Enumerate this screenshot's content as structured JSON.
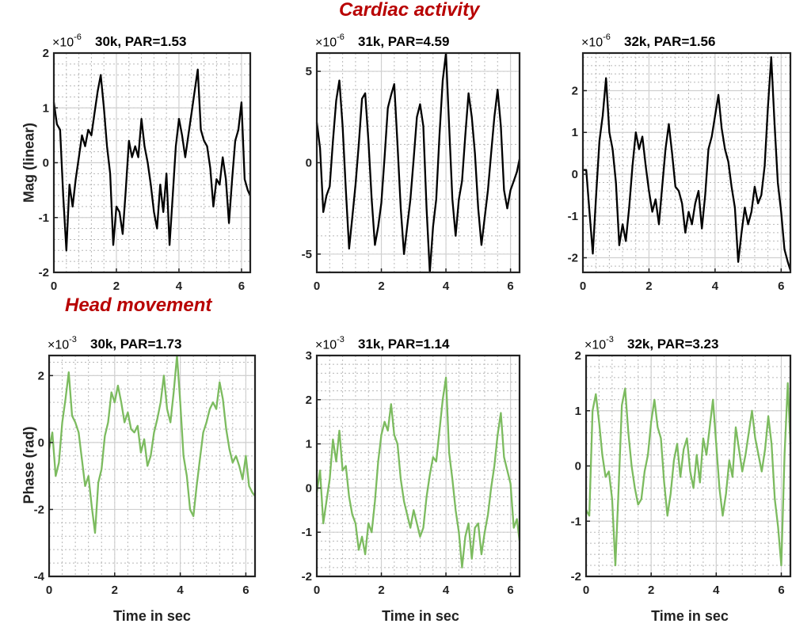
{
  "section_titles": {
    "cardiac": "Cardiac activity",
    "head": "Head movement"
  },
  "xlabel": "Time in sec",
  "colors": {
    "cardiac_line": "#000000",
    "head_line": "#7cbb5f",
    "section_title": "#b80000"
  },
  "chart_data": [
    {
      "type": "line",
      "title": "30k, PAR=1.53",
      "exponent_base": "×10",
      "exponent_power": "-6",
      "ylabel": "Mag (linear)",
      "xlabel": "",
      "xlim": [
        0,
        6.28
      ],
      "ylim": [
        -2,
        2
      ],
      "xticks": [
        0,
        2,
        4,
        6
      ],
      "yticks": [
        -2,
        -1,
        0,
        1,
        2
      ],
      "ytick_labels": [
        "-2",
        "-1",
        "0",
        "1",
        "2"
      ],
      "color": "#000000",
      "x": [
        0,
        0.1,
        0.2,
        0.3,
        0.4,
        0.5,
        0.6,
        0.7,
        0.8,
        0.9,
        1.0,
        1.1,
        1.2,
        1.3,
        1.4,
        1.5,
        1.6,
        1.7,
        1.8,
        1.9,
        2.0,
        2.1,
        2.2,
        2.3,
        2.4,
        2.5,
        2.6,
        2.7,
        2.8,
        2.9,
        3.0,
        3.1,
        3.2,
        3.3,
        3.4,
        3.5,
        3.6,
        3.7,
        3.8,
        3.9,
        4.0,
        4.1,
        4.2,
        4.3,
        4.4,
        4.5,
        4.6,
        4.7,
        4.8,
        4.9,
        5.0,
        5.1,
        5.2,
        5.3,
        5.4,
        5.5,
        5.6,
        5.7,
        5.8,
        5.9,
        6.0,
        6.1,
        6.2,
        6.28
      ],
      "values": [
        1.1,
        0.7,
        0.6,
        -0.6,
        -1.6,
        -0.4,
        -0.8,
        -0.3,
        0.1,
        0.5,
        0.3,
        0.6,
        0.5,
        0.9,
        1.3,
        1.6,
        1.0,
        0.3,
        -0.2,
        -1.5,
        -0.8,
        -0.9,
        -1.3,
        -0.5,
        0.4,
        0.1,
        0.3,
        0.1,
        0.8,
        0.3,
        0.0,
        -0.4,
        -0.9,
        -1.2,
        -0.4,
        -0.9,
        -0.2,
        -1.5,
        -0.6,
        0.3,
        0.8,
        0.5,
        0.1,
        0.5,
        0.9,
        1.3,
        1.7,
        0.6,
        0.4,
        0.3,
        -0.1,
        -0.8,
        -0.3,
        -0.4,
        0.1,
        -0.3,
        -1.1,
        -0.3,
        0.4,
        0.6,
        1.1,
        -0.3,
        -0.5,
        -0.6
      ]
    },
    {
      "type": "line",
      "title": "31k, PAR=4.59",
      "exponent_base": "×10",
      "exponent_power": "-6",
      "ylabel": "",
      "xlabel": "",
      "xlim": [
        0,
        6.28
      ],
      "ylim": [
        -6,
        6
      ],
      "xticks": [
        0,
        2,
        4,
        6
      ],
      "yticks": [
        -5,
        0,
        5
      ],
      "ytick_labels": [
        "-5",
        "0",
        "5"
      ],
      "color": "#000000",
      "x": [
        0,
        0.1,
        0.2,
        0.3,
        0.4,
        0.5,
        0.6,
        0.7,
        0.8,
        0.9,
        1.0,
        1.1,
        1.2,
        1.3,
        1.4,
        1.5,
        1.6,
        1.7,
        1.8,
        1.9,
        2.0,
        2.1,
        2.2,
        2.3,
        2.4,
        2.5,
        2.6,
        2.7,
        2.8,
        2.9,
        3.0,
        3.1,
        3.2,
        3.3,
        3.4,
        3.5,
        3.6,
        3.7,
        3.8,
        3.9,
        4.0,
        4.1,
        4.2,
        4.3,
        4.4,
        4.5,
        4.6,
        4.7,
        4.8,
        4.9,
        5.0,
        5.1,
        5.2,
        5.3,
        5.4,
        5.5,
        5.6,
        5.7,
        5.8,
        5.9,
        6.0,
        6.1,
        6.2,
        6.28
      ],
      "values": [
        2.2,
        0.8,
        -2.7,
        -1.8,
        -1.3,
        1.2,
        3.4,
        4.5,
        2.0,
        -1.5,
        -4.7,
        -3.0,
        -1.2,
        1.0,
        3.5,
        3.8,
        1.2,
        -2.0,
        -4.5,
        -3.5,
        -2.2,
        0.3,
        3.0,
        3.7,
        4.3,
        1.0,
        -2.5,
        -5.0,
        -3.5,
        -2.0,
        0.2,
        2.5,
        3.2,
        2.0,
        -2.5,
        -6.0,
        -3.5,
        -2.0,
        1.5,
        4.5,
        6.0,
        2.0,
        -2.0,
        -4.0,
        -2.0,
        -1.0,
        1.5,
        3.8,
        2.5,
        0.5,
        -2.5,
        -4.5,
        -3.0,
        -1.5,
        0.5,
        2.5,
        4.0,
        2.0,
        -1.5,
        -2.5,
        -1.5,
        -1.0,
        -0.5,
        0.2
      ]
    },
    {
      "type": "line",
      "title": "32k, PAR=1.56",
      "exponent_base": "×10",
      "exponent_power": "-6",
      "ylabel": "",
      "xlabel": "",
      "xlim": [
        0,
        6.28
      ],
      "ylim": [
        -2.35,
        2.9
      ],
      "xticks": [
        0,
        2,
        4,
        6
      ],
      "yticks": [
        -2,
        -1,
        0,
        1,
        2
      ],
      "ytick_labels": [
        "-2",
        "-1",
        "0",
        "1",
        "2"
      ],
      "color": "#000000",
      "x": [
        0,
        0.1,
        0.2,
        0.3,
        0.4,
        0.5,
        0.6,
        0.7,
        0.8,
        0.9,
        1.0,
        1.1,
        1.2,
        1.3,
        1.4,
        1.5,
        1.6,
        1.7,
        1.8,
        1.9,
        2.0,
        2.1,
        2.2,
        2.3,
        2.4,
        2.5,
        2.6,
        2.7,
        2.8,
        2.9,
        3.0,
        3.1,
        3.2,
        3.3,
        3.4,
        3.5,
        3.6,
        3.7,
        3.8,
        3.9,
        4.0,
        4.1,
        4.2,
        4.3,
        4.4,
        4.5,
        4.6,
        4.7,
        4.8,
        4.9,
        5.0,
        5.1,
        5.2,
        5.3,
        5.4,
        5.5,
        5.6,
        5.7,
        5.8,
        5.9,
        6.0,
        6.1,
        6.2,
        6.28
      ],
      "values": [
        0.1,
        0.1,
        -0.9,
        -1.9,
        -0.5,
        0.8,
        1.4,
        2.3,
        1.0,
        0.6,
        -0.2,
        -1.7,
        -1.2,
        -1.6,
        -0.8,
        0.2,
        1.0,
        0.6,
        0.9,
        0.2,
        -0.4,
        -0.9,
        -0.6,
        -1.2,
        -0.3,
        0.6,
        1.2,
        0.5,
        -0.3,
        -0.4,
        -0.7,
        -1.4,
        -0.9,
        -1.2,
        -0.7,
        -0.4,
        -1.3,
        -0.5,
        0.6,
        0.9,
        1.4,
        1.9,
        1.1,
        0.6,
        0.3,
        -0.3,
        -0.8,
        -2.1,
        -1.4,
        -0.8,
        -1.2,
        -0.9,
        -0.3,
        -0.7,
        -0.5,
        0.2,
        1.6,
        2.8,
        1.2,
        -0.2,
        -0.9,
        -1.8,
        -2.1,
        -2.3
      ]
    },
    {
      "type": "line",
      "title": "30k, PAR=1.73",
      "exponent_base": "×10",
      "exponent_power": "-3",
      "ylabel": "Phase (rad)",
      "xlabel": "Time in sec",
      "xlim": [
        0,
        6.28
      ],
      "ylim": [
        -4,
        2.6
      ],
      "xticks": [
        0,
        2,
        4,
        6
      ],
      "yticks": [
        -4,
        -2,
        0,
        2
      ],
      "ytick_labels": [
        "-4",
        "-2",
        "0",
        "2"
      ],
      "color": "#7cbb5f",
      "x": [
        0,
        0.1,
        0.2,
        0.3,
        0.4,
        0.5,
        0.6,
        0.7,
        0.8,
        0.9,
        1.0,
        1.1,
        1.2,
        1.3,
        1.4,
        1.5,
        1.6,
        1.7,
        1.8,
        1.9,
        2.0,
        2.1,
        2.2,
        2.3,
        2.4,
        2.5,
        2.6,
        2.7,
        2.8,
        2.9,
        3.0,
        3.1,
        3.2,
        3.3,
        3.4,
        3.5,
        3.6,
        3.7,
        3.8,
        3.9,
        4.0,
        4.1,
        4.2,
        4.3,
        4.4,
        4.5,
        4.6,
        4.7,
        4.8,
        4.9,
        5.0,
        5.1,
        5.2,
        5.3,
        5.4,
        5.5,
        5.6,
        5.7,
        5.8,
        5.9,
        6.0,
        6.1,
        6.2,
        6.28
      ],
      "values": [
        -0.2,
        0.3,
        -1.0,
        -0.6,
        0.6,
        1.3,
        2.1,
        0.8,
        0.6,
        0.3,
        -0.5,
        -1.3,
        -1.0,
        -1.9,
        -2.7,
        -1.2,
        -0.8,
        0.2,
        0.6,
        1.5,
        1.2,
        1.7,
        1.2,
        0.6,
        0.9,
        0.4,
        0.3,
        0.5,
        -0.3,
        0.1,
        -0.7,
        -0.4,
        0.3,
        0.7,
        1.2,
        2.0,
        1.0,
        0.6,
        1.5,
        2.6,
        1.2,
        -0.4,
        -1.0,
        -2.0,
        -2.2,
        -1.3,
        -0.5,
        0.3,
        0.6,
        1.0,
        1.2,
        1.0,
        1.8,
        1.3,
        0.4,
        -0.2,
        -0.6,
        -0.4,
        -0.7,
        -1.1,
        -0.4,
        -1.3,
        -1.5,
        -1.6
      ]
    },
    {
      "type": "line",
      "title": "31k, PAR=1.14",
      "exponent_base": "×10",
      "exponent_power": "-3",
      "ylabel": "",
      "xlabel": "Time in sec",
      "xlim": [
        0,
        6.28
      ],
      "ylim": [
        -2,
        3
      ],
      "xticks": [
        0,
        2,
        4,
        6
      ],
      "yticks": [
        -2,
        -1,
        0,
        1,
        2,
        3
      ],
      "ytick_labels": [
        "-2",
        "-1",
        "0",
        "1",
        "2",
        "3"
      ],
      "color": "#7cbb5f",
      "x": [
        0,
        0.1,
        0.2,
        0.3,
        0.4,
        0.5,
        0.6,
        0.7,
        0.8,
        0.9,
        1.0,
        1.1,
        1.2,
        1.3,
        1.4,
        1.5,
        1.6,
        1.7,
        1.8,
        1.9,
        2.0,
        2.1,
        2.2,
        2.3,
        2.4,
        2.5,
        2.6,
        2.7,
        2.8,
        2.9,
        3.0,
        3.1,
        3.2,
        3.3,
        3.4,
        3.5,
        3.6,
        3.7,
        3.8,
        3.9,
        4.0,
        4.1,
        4.2,
        4.3,
        4.4,
        4.5,
        4.6,
        4.7,
        4.8,
        4.9,
        5.0,
        5.1,
        5.2,
        5.3,
        5.4,
        5.5,
        5.6,
        5.7,
        5.8,
        5.9,
        6.0,
        6.1,
        6.2,
        6.28
      ],
      "values": [
        -0.1,
        0.4,
        -0.8,
        -0.3,
        0.2,
        1.1,
        0.6,
        1.3,
        0.4,
        0.5,
        -0.2,
        -0.6,
        -0.8,
        -1.4,
        -1.1,
        -1.5,
        -0.8,
        -1.0,
        -0.3,
        0.6,
        1.2,
        1.5,
        1.3,
        1.9,
        1.2,
        1.0,
        0.2,
        -0.3,
        -0.6,
        -0.9,
        -0.5,
        -0.8,
        -1.1,
        -0.9,
        -0.2,
        0.3,
        0.7,
        0.6,
        1.3,
        2.0,
        2.5,
        0.8,
        0.2,
        -0.5,
        -1.0,
        -1.8,
        -1.1,
        -0.8,
        -1.6,
        -0.9,
        -0.8,
        -1.5,
        -1.0,
        -0.6,
        0.0,
        0.5,
        1.2,
        1.7,
        0.7,
        0.4,
        0.1,
        -0.9,
        -0.7,
        -1.2
      ]
    },
    {
      "type": "line",
      "title": "32k, PAR=3.23",
      "exponent_base": "×10",
      "exponent_power": "-3",
      "ylabel": "",
      "xlabel": "Time in sec",
      "xlim": [
        0,
        6.28
      ],
      "ylim": [
        -2,
        2
      ],
      "xticks": [
        0,
        2,
        4,
        6
      ],
      "yticks": [
        -2,
        -1,
        0,
        1,
        2
      ],
      "ytick_labels": [
        "-2",
        "-1",
        "0",
        "1",
        "2"
      ],
      "color": "#7cbb5f",
      "x": [
        0,
        0.1,
        0.2,
        0.3,
        0.4,
        0.5,
        0.6,
        0.7,
        0.8,
        0.9,
        1.0,
        1.1,
        1.2,
        1.3,
        1.4,
        1.5,
        1.6,
        1.7,
        1.8,
        1.9,
        2.0,
        2.1,
        2.2,
        2.3,
        2.4,
        2.5,
        2.6,
        2.7,
        2.8,
        2.9,
        3.0,
        3.1,
        3.2,
        3.3,
        3.4,
        3.5,
        3.6,
        3.7,
        3.8,
        3.9,
        4.0,
        4.1,
        4.2,
        4.3,
        4.4,
        4.5,
        4.6,
        4.7,
        4.8,
        4.9,
        5.0,
        5.1,
        5.2,
        5.3,
        5.4,
        5.5,
        5.6,
        5.7,
        5.8,
        5.9,
        6.0,
        6.1,
        6.2,
        6.28
      ],
      "values": [
        -0.8,
        -0.9,
        1.0,
        1.3,
        0.8,
        0.2,
        -0.2,
        -0.1,
        -0.6,
        -1.8,
        -0.4,
        1.1,
        1.4,
        0.6,
        0.0,
        -0.4,
        -0.7,
        -0.6,
        -0.1,
        0.2,
        0.8,
        1.2,
        0.7,
        0.5,
        -0.3,
        -0.9,
        -0.5,
        0.1,
        0.4,
        -0.2,
        0.3,
        0.5,
        -0.1,
        -0.4,
        0.2,
        -0.3,
        0.5,
        0.2,
        0.7,
        1.2,
        0.4,
        -0.4,
        -0.9,
        -0.5,
        0.1,
        -0.2,
        0.7,
        0.3,
        -0.1,
        0.2,
        0.6,
        1.0,
        0.5,
        0.2,
        -0.1,
        0.3,
        0.9,
        0.4,
        -0.6,
        -1.1,
        -1.8,
        0.2,
        1.5,
        0.4
      ]
    }
  ]
}
